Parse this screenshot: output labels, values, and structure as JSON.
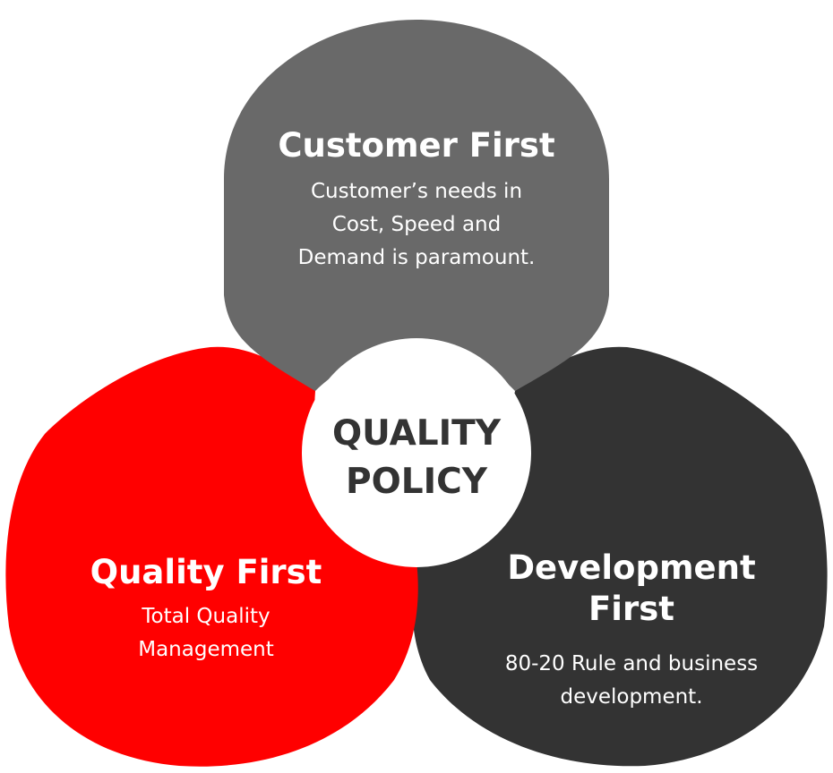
{
  "colors": {
    "customer": "#696969",
    "quality": "#ff0000",
    "development": "#333333",
    "center": "#ffffff",
    "center_text": "#333333"
  },
  "center": {
    "line1": "QUALITY",
    "line2": "POLICY"
  },
  "customer": {
    "title": "Customer First",
    "desc1": "Customer’s needs in",
    "desc2": "Cost, Speed and",
    "desc3": "Demand is paramount."
  },
  "quality": {
    "title": "Quality First",
    "desc1": "Total Quality",
    "desc2": "Management"
  },
  "development": {
    "title1": "Development",
    "title2": "First",
    "desc1": "80-20 Rule and business",
    "desc2": "development."
  }
}
